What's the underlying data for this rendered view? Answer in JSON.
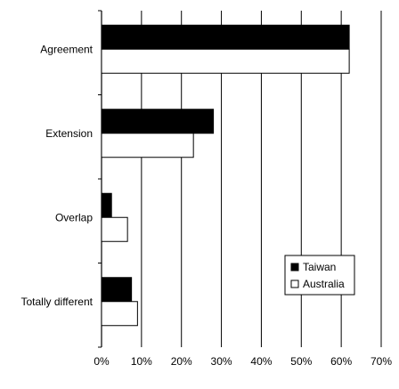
{
  "chart_data": {
    "type": "bar",
    "orientation": "horizontal",
    "categories": [
      "Agreement",
      "Extension",
      "Overlap",
      "Totally different"
    ],
    "series": [
      {
        "name": "Taiwan",
        "values": [
          62,
          28,
          2.5,
          7.5
        ],
        "color": "#000000"
      },
      {
        "name": "Australia",
        "values": [
          62,
          23,
          6.5,
          9
        ],
        "color": "#ffffff"
      }
    ],
    "xlim": [
      0,
      70
    ],
    "xticks": [
      0,
      10,
      20,
      30,
      40,
      50,
      60,
      70
    ],
    "xtick_labels": [
      "0%",
      "10%",
      "20%",
      "30%",
      "40%",
      "50%",
      "60%",
      "70%"
    ],
    "title": "",
    "xlabel": "",
    "ylabel": "",
    "grid": "vertical",
    "legend": {
      "position": "lower-right",
      "entries": [
        "Taiwan",
        "Australia"
      ]
    }
  }
}
